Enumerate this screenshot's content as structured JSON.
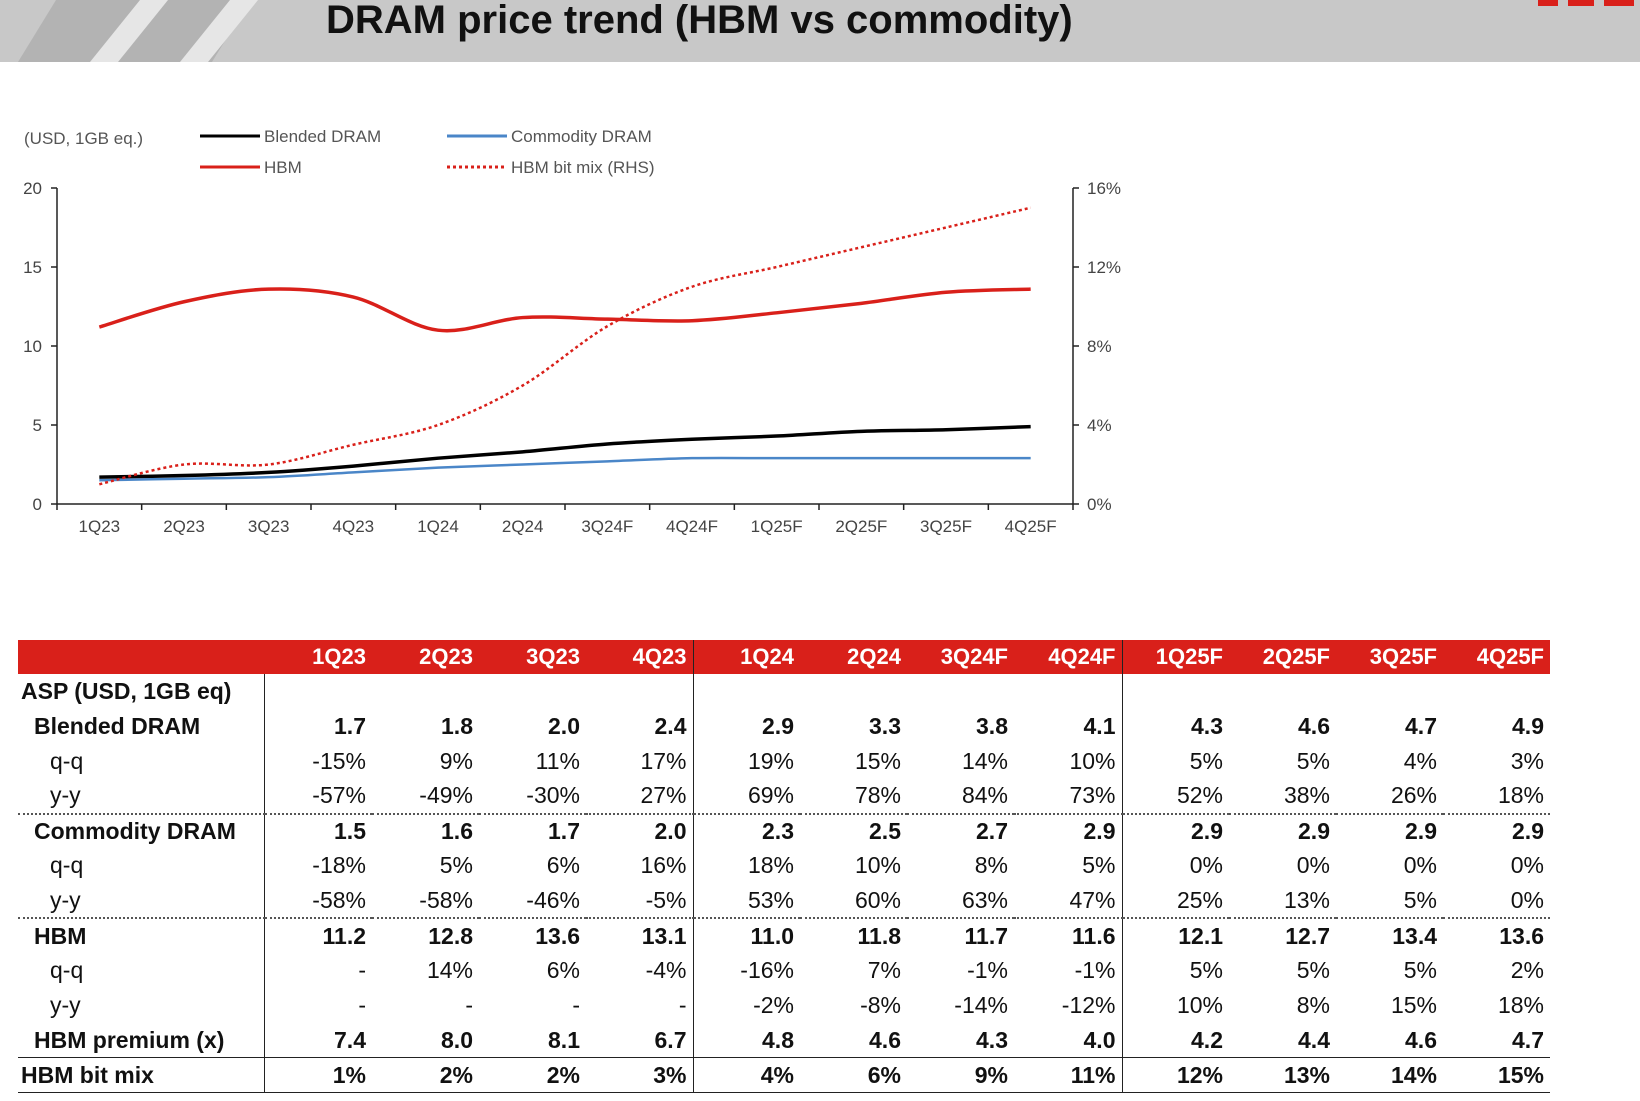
{
  "slide": {
    "title": "DRAM price trend (HBM vs commodity)"
  },
  "chart_data": {
    "type": "line",
    "unit_label": "(USD, 1GB eq.)",
    "categories": [
      "1Q23",
      "2Q23",
      "3Q23",
      "4Q23",
      "1Q24",
      "2Q24",
      "3Q24F",
      "4Q24F",
      "1Q25F",
      "2Q25F",
      "3Q25F",
      "4Q25F"
    ],
    "left_axis": {
      "ylim": [
        0,
        20
      ],
      "ticks": [
        "0",
        "5",
        "10",
        "15",
        "20"
      ]
    },
    "right_axis": {
      "ylim": [
        0,
        16
      ],
      "ticks": [
        "0%",
        "4%",
        "8%",
        "12%",
        "16%"
      ]
    },
    "legend": {
      "placement": "top-left",
      "entries": [
        {
          "label": "Blended DRAM",
          "color": "#000000",
          "style": "solid"
        },
        {
          "label": "Commodity DRAM",
          "color": "#4a86c8",
          "style": "solid"
        },
        {
          "label": "HBM",
          "color": "#d9201a",
          "style": "solid"
        },
        {
          "label": "HBM bit mix (RHS)",
          "color": "#d9201a",
          "style": "dotted"
        }
      ]
    },
    "series": [
      {
        "name": "Blended DRAM",
        "axis": "left",
        "color": "#000000",
        "values": [
          1.7,
          1.8,
          2.0,
          2.4,
          2.9,
          3.3,
          3.8,
          4.1,
          4.3,
          4.6,
          4.7,
          4.9
        ]
      },
      {
        "name": "Commodity DRAM",
        "axis": "left",
        "color": "#4a86c8",
        "values": [
          1.5,
          1.6,
          1.7,
          2.0,
          2.3,
          2.5,
          2.7,
          2.9,
          2.9,
          2.9,
          2.9,
          2.9
        ]
      },
      {
        "name": "HBM",
        "axis": "left",
        "color": "#d9201a",
        "values": [
          11.2,
          12.8,
          13.6,
          13.1,
          11.0,
          11.8,
          11.7,
          11.6,
          12.1,
          12.7,
          13.4,
          13.6
        ]
      },
      {
        "name": "HBM bit mix (RHS)",
        "axis": "right",
        "color": "#d9201a",
        "dotted": true,
        "values": [
          1,
          2,
          2,
          3,
          4,
          6,
          9,
          11,
          12,
          13,
          14,
          15
        ]
      }
    ]
  },
  "table": {
    "headers": [
      "1Q23",
      "2Q23",
      "3Q23",
      "4Q23",
      "1Q24",
      "2Q24",
      "3Q24F",
      "4Q24F",
      "1Q25F",
      "2Q25F",
      "3Q25F",
      "4Q25F"
    ],
    "rows": [
      {
        "label": "ASP (USD, 1GB eq)",
        "kind": "group",
        "values": []
      },
      {
        "label": "Blended DRAM",
        "kind": "main",
        "values": [
          "1.7",
          "1.8",
          "2.0",
          "2.4",
          "2.9",
          "3.3",
          "3.8",
          "4.1",
          "4.3",
          "4.6",
          "4.7",
          "4.9"
        ]
      },
      {
        "label": "q-q",
        "kind": "sub",
        "values": [
          "-15%",
          "9%",
          "11%",
          "17%",
          "19%",
          "15%",
          "14%",
          "10%",
          "5%",
          "5%",
          "4%",
          "3%"
        ]
      },
      {
        "label": "y-y",
        "kind": "sub",
        "border": "dotted",
        "values": [
          "-57%",
          "-49%",
          "-30%",
          "27%",
          "69%",
          "78%",
          "84%",
          "73%",
          "52%",
          "38%",
          "26%",
          "18%"
        ]
      },
      {
        "label": "Commodity DRAM",
        "kind": "main",
        "values": [
          "1.5",
          "1.6",
          "1.7",
          "2.0",
          "2.3",
          "2.5",
          "2.7",
          "2.9",
          "2.9",
          "2.9",
          "2.9",
          "2.9"
        ]
      },
      {
        "label": "q-q",
        "kind": "sub",
        "values": [
          "-18%",
          "5%",
          "6%",
          "16%",
          "18%",
          "10%",
          "8%",
          "5%",
          "0%",
          "0%",
          "0%",
          "0%"
        ]
      },
      {
        "label": "y-y",
        "kind": "sub",
        "border": "dotted",
        "values": [
          "-58%",
          "-58%",
          "-46%",
          "-5%",
          "53%",
          "60%",
          "63%",
          "47%",
          "25%",
          "13%",
          "5%",
          "0%"
        ]
      },
      {
        "label": "HBM",
        "kind": "main",
        "values": [
          "11.2",
          "12.8",
          "13.6",
          "13.1",
          "11.0",
          "11.8",
          "11.7",
          "11.6",
          "12.1",
          "12.7",
          "13.4",
          "13.6"
        ]
      },
      {
        "label": "q-q",
        "kind": "sub",
        "values": [
          "-",
          "14%",
          "6%",
          "-4%",
          "-16%",
          "7%",
          "-1%",
          "-1%",
          "5%",
          "5%",
          "5%",
          "2%"
        ]
      },
      {
        "label": "y-y",
        "kind": "sub",
        "values": [
          "-",
          "-",
          "-",
          "-",
          "-2%",
          "-8%",
          "-14%",
          "-12%",
          "10%",
          "8%",
          "15%",
          "18%"
        ]
      },
      {
        "label": "HBM premium (x)",
        "kind": "main",
        "border": "solid",
        "values": [
          "7.4",
          "8.0",
          "8.1",
          "6.7",
          "4.8",
          "4.6",
          "4.3",
          "4.0",
          "4.2",
          "4.4",
          "4.6",
          "4.7"
        ]
      },
      {
        "label": "HBM bit mix",
        "kind": "group",
        "border": "solid",
        "values": [
          "1%",
          "2%",
          "2%",
          "3%",
          "4%",
          "6%",
          "9%",
          "11%",
          "12%",
          "13%",
          "14%",
          "15%"
        ]
      }
    ]
  }
}
